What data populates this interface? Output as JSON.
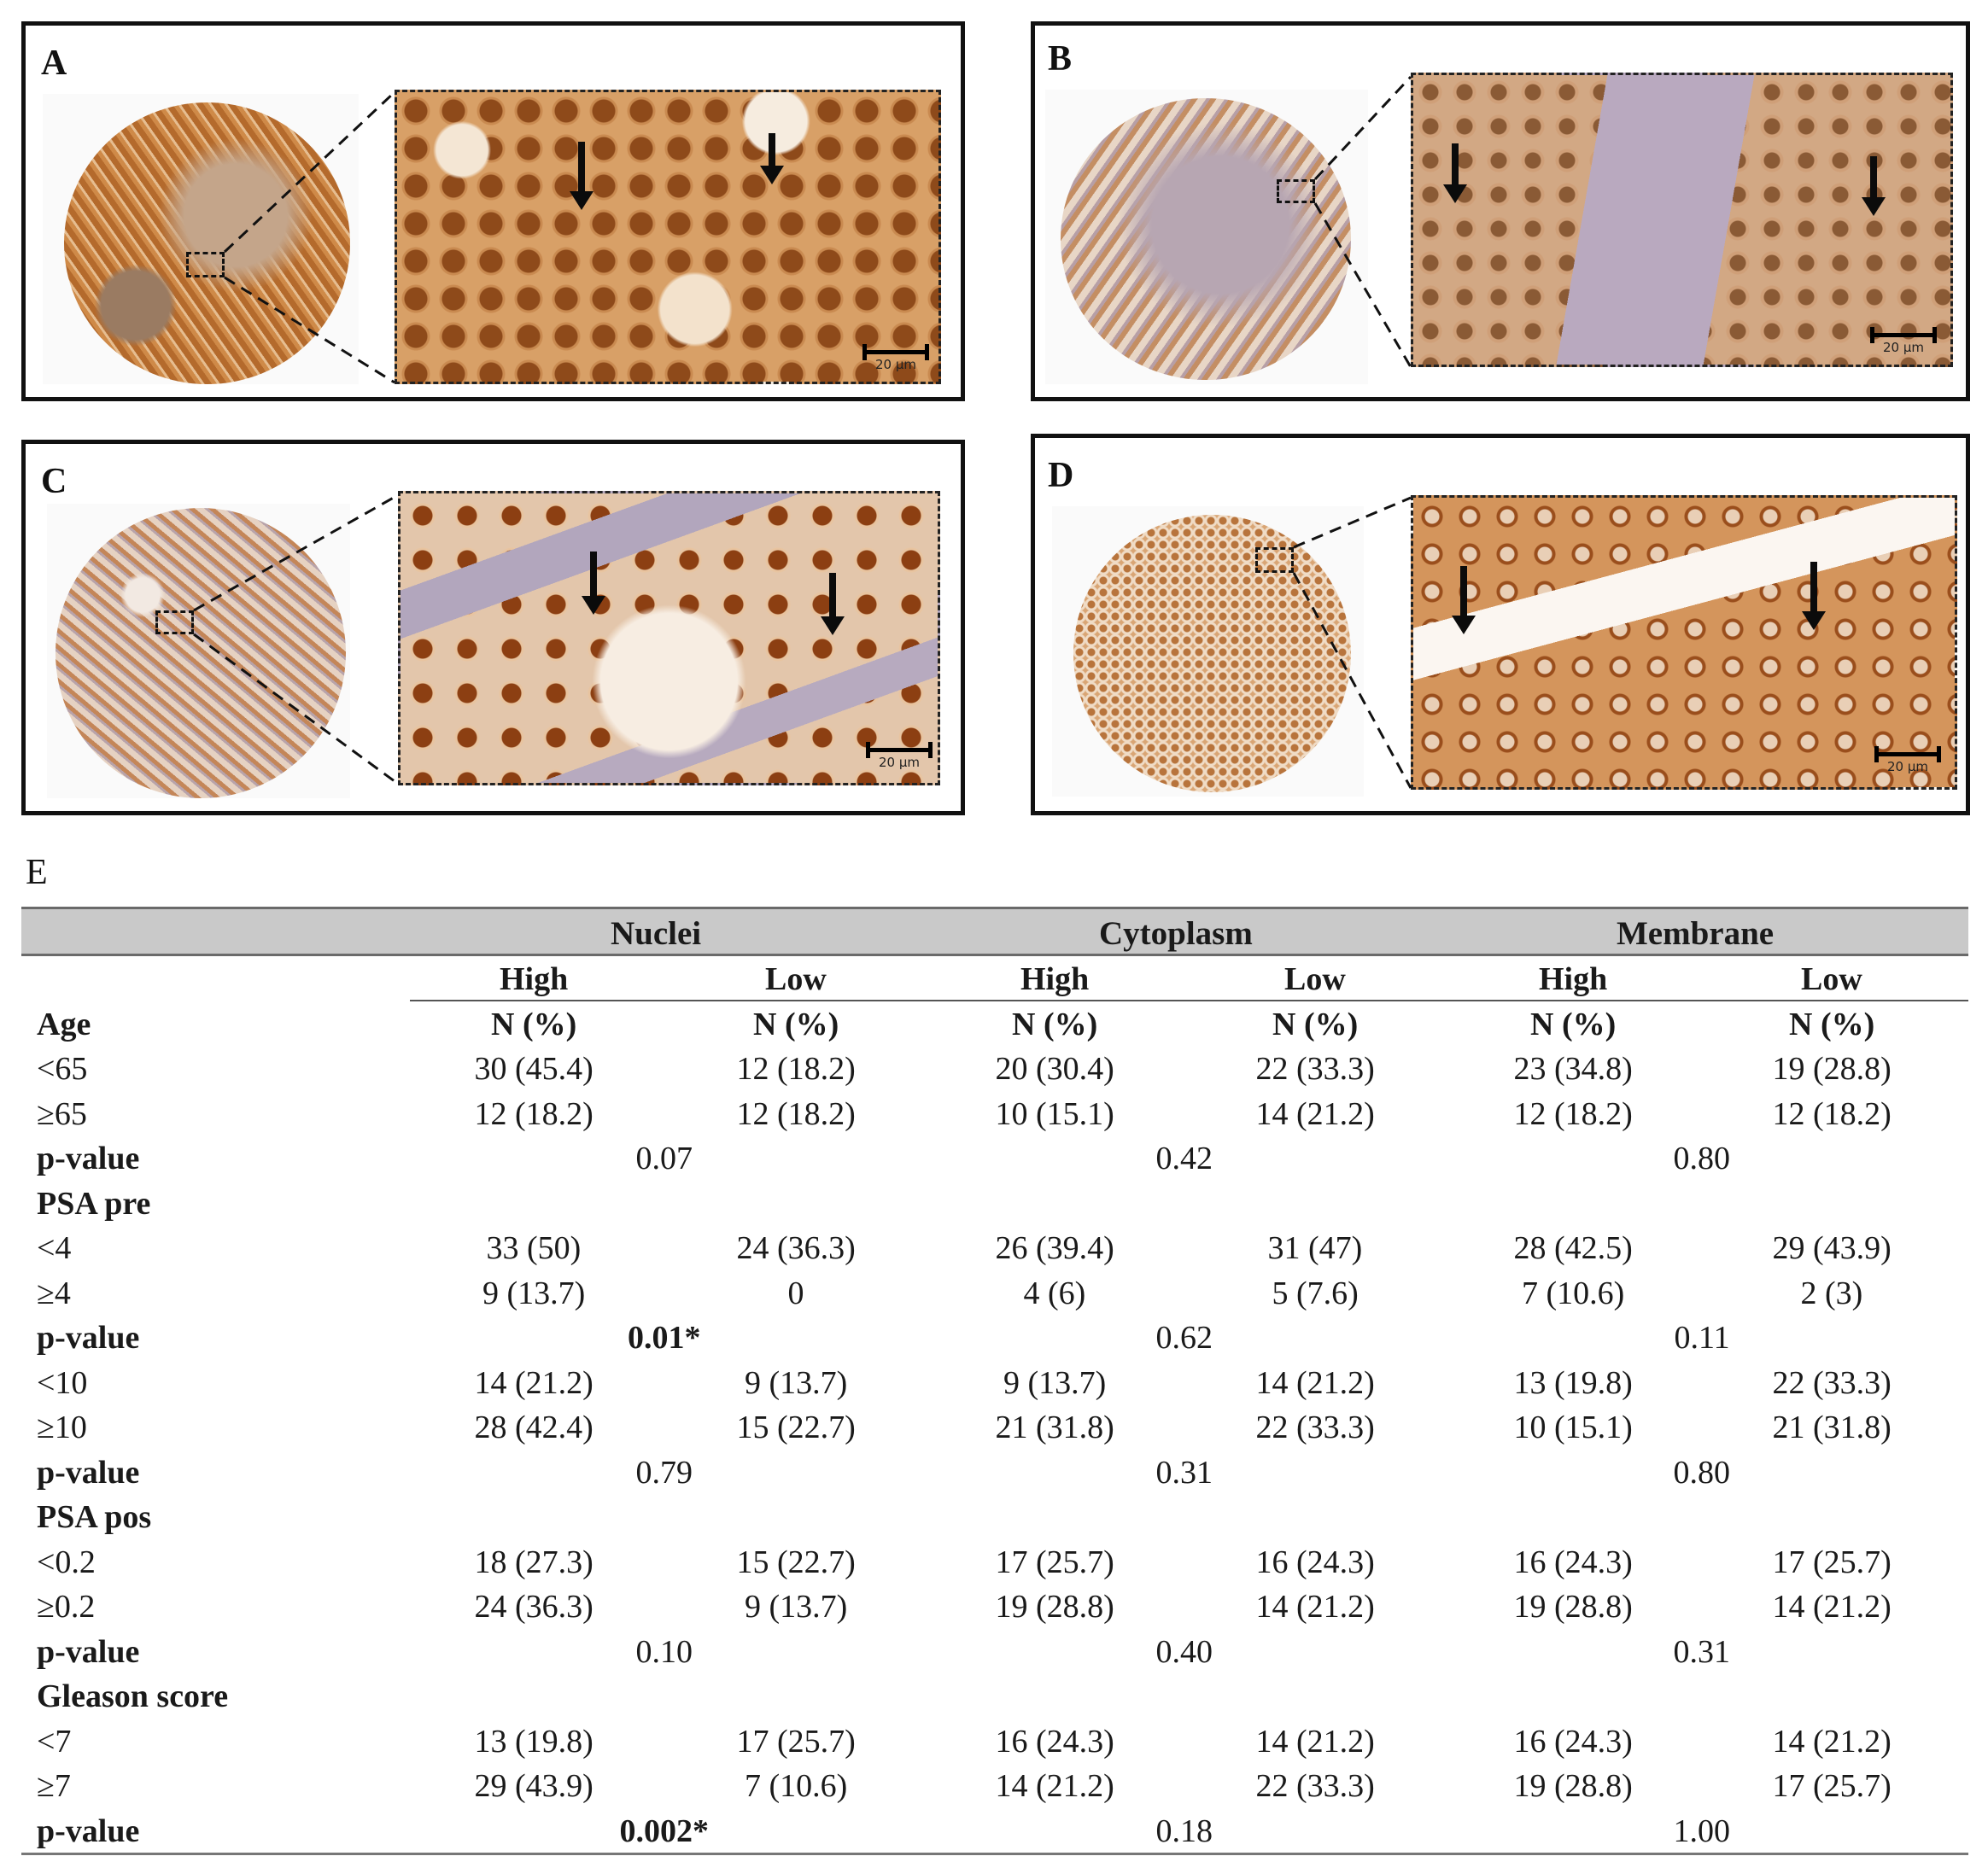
{
  "panels": [
    {
      "letter": "A",
      "scale_label": "20 µm"
    },
    {
      "letter": "B",
      "scale_label": "20 µm"
    },
    {
      "letter": "C",
      "scale_label": "20 µm"
    },
    {
      "letter": "D",
      "scale_label": "20 µm"
    }
  ],
  "table": {
    "letter": "E",
    "groups": [
      "Nuclei",
      "Cytoplasm",
      "Membrane"
    ],
    "subheaders": [
      "High",
      "Low",
      "High",
      "Low",
      "High",
      "Low"
    ],
    "count_header": "N (%)",
    "rows": [
      {
        "label": "Age",
        "type": "section",
        "cells": [
          "N (%)",
          "N (%)",
          "N (%)",
          "N (%)",
          "N (%)",
          "N (%)"
        ]
      },
      {
        "label": "<65",
        "type": "data",
        "cells": [
          "30 (45.4)",
          "12 (18.2)",
          "20 (30.4)",
          "22 (33.3)",
          "23 (34.8)",
          "19 (28.8)"
        ]
      },
      {
        "label": "≥65",
        "type": "data",
        "cells": [
          "12 (18.2)",
          "12 (18.2)",
          "10 (15.1)",
          "14 (21.2)",
          "12 (18.2)",
          "12 (18.2)"
        ]
      },
      {
        "label": "p-value",
        "type": "p",
        "p": [
          "0.07",
          "0.42",
          "0.80"
        ]
      },
      {
        "label": "PSA pre",
        "type": "section",
        "cells": []
      },
      {
        "label": "<4",
        "type": "data",
        "cells": [
          "33 (50)",
          "24 (36.3)",
          "26 (39.4)",
          "31 (47)",
          "28 (42.5)",
          "29 (43.9)"
        ]
      },
      {
        "label": "≥4",
        "type": "data",
        "cells": [
          "9 (13.7)",
          "0",
          "4 (6)",
          "5 (7.6)",
          "7 (10.6)",
          "2 (3)"
        ]
      },
      {
        "label": "p-value",
        "type": "p",
        "p": [
          "0.01*",
          "0.62",
          "0.11"
        ]
      },
      {
        "label": "<10",
        "type": "data",
        "cells": [
          "14 (21.2)",
          "9 (13.7)",
          "9 (13.7)",
          "14 (21.2)",
          "13 (19.8)",
          "22 (33.3)"
        ]
      },
      {
        "label": "≥10",
        "type": "data",
        "cells": [
          "28 (42.4)",
          "15 (22.7)",
          "21 (31.8)",
          "22 (33.3)",
          "10 (15.1)",
          "21 (31.8)"
        ]
      },
      {
        "label": "p-value",
        "type": "p",
        "p": [
          "0.79",
          "0.31",
          "0.80"
        ]
      },
      {
        "label": "PSA pos",
        "type": "section",
        "cells": []
      },
      {
        "label": "<0.2",
        "type": "data",
        "cells": [
          "18 (27.3)",
          "15 (22.7)",
          "17 (25.7)",
          "16 (24.3)",
          "16 (24.3)",
          "17 (25.7)"
        ]
      },
      {
        "label": "≥0.2",
        "type": "data",
        "cells": [
          "24 (36.3)",
          "9 (13.7)",
          "19 (28.8)",
          "14 (21.2)",
          "19 (28.8)",
          "14 (21.2)"
        ]
      },
      {
        "label": "p-value",
        "type": "p",
        "p": [
          "0.10",
          "0.40",
          "0.31"
        ]
      },
      {
        "label": "Gleason score",
        "type": "section",
        "cells": []
      },
      {
        "label": "<7",
        "type": "data",
        "cells": [
          "13 (19.8)",
          "17 (25.7)",
          "16 (24.3)",
          "14 (21.2)",
          "16 (24.3)",
          "14 (21.2)"
        ]
      },
      {
        "label": "≥7",
        "type": "data",
        "cells": [
          "29 (43.9)",
          "7 (10.6)",
          "14 (21.2)",
          "22 (33.3)",
          "19 (28.8)",
          "17 (25.7)"
        ]
      },
      {
        "label": "p-value",
        "type": "p",
        "p": [
          "0.002*",
          "0.18",
          "1.00"
        ]
      }
    ]
  }
}
